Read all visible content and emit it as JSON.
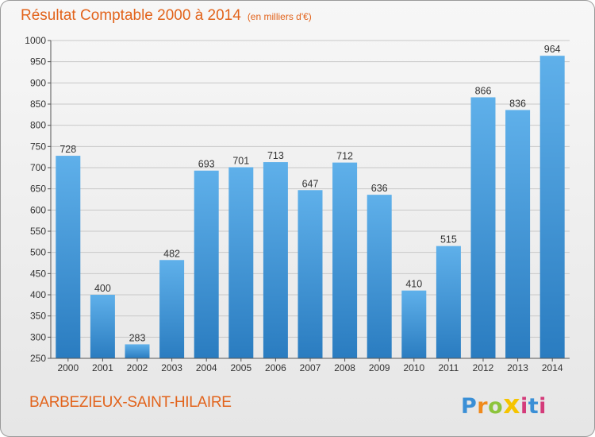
{
  "title": "Résultat Comptable 2000 à 2014",
  "subtitle": "(en milliers d'€)",
  "city": "BARBEZIEUX-SAINT-HILAIRE",
  "brand": {
    "p": "P",
    "r": "r",
    "o": "o",
    "x": "x",
    "i": "i",
    "t": "t",
    "i2": "i"
  },
  "colors": {
    "accent": "#e2631b",
    "bar": "#3a97dc",
    "bar_dark": "#2b7dc2"
  },
  "chart_data": {
    "type": "bar",
    "categories": [
      "2000",
      "2001",
      "2002",
      "2003",
      "2004",
      "2005",
      "2006",
      "2007",
      "2008",
      "2009",
      "2010",
      "2011",
      "2012",
      "2013",
      "2014"
    ],
    "values": [
      728,
      400,
      283,
      482,
      693,
      701,
      713,
      647,
      712,
      636,
      410,
      515,
      866,
      836,
      964
    ],
    "ylim": [
      250,
      1000
    ],
    "yticks": [
      250,
      300,
      350,
      400,
      450,
      500,
      550,
      600,
      650,
      700,
      750,
      800,
      850,
      900,
      950,
      1000
    ],
    "grid": true,
    "xlabel": "",
    "ylabel": ""
  }
}
